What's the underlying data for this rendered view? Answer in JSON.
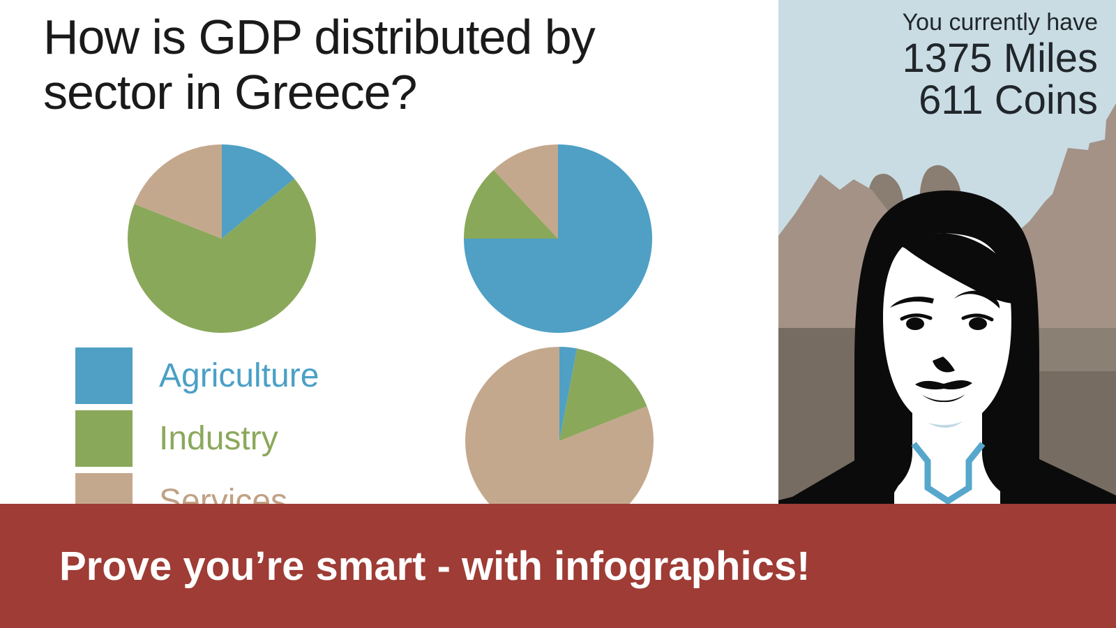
{
  "question": {
    "title_lines": [
      "How is GDP distributed by",
      "sector in Greece?"
    ]
  },
  "legend": {
    "items": [
      {
        "label": "Agriculture",
        "color": "#4FA0C4",
        "label_color": "#4BA0C6"
      },
      {
        "label": "Industry",
        "color": "#8AA85A",
        "label_color": "#8CA85C"
      },
      {
        "label": "Services",
        "color": "#C4A88D",
        "label_color": "#C0A184"
      }
    ]
  },
  "chart_data": [
    {
      "type": "pie",
      "role": "question-example-pie",
      "categories": [
        "Agriculture",
        "Industry",
        "Services"
      ],
      "values": [
        14,
        67,
        19
      ],
      "colors": [
        "#4FA0C4",
        "#8AA85A",
        "#C4A88D"
      ],
      "title": "",
      "legend_position": "below-left",
      "data_labels": false,
      "start_angle_deg": 0,
      "direction": "clockwise"
    },
    {
      "type": "pie",
      "role": "answer-option-a",
      "categories": [
        "Agriculture",
        "Industry",
        "Services"
      ],
      "values": [
        75,
        13,
        12
      ],
      "colors": [
        "#4FA0C4",
        "#8AA85A",
        "#C4A88D"
      ],
      "title": "",
      "legend_position": "none",
      "data_labels": false,
      "start_angle_deg": 0,
      "direction": "clockwise"
    },
    {
      "type": "pie",
      "role": "answer-option-b",
      "categories": [
        "Agriculture",
        "Industry",
        "Services"
      ],
      "values": [
        3,
        16,
        81
      ],
      "colors": [
        "#4FA0C4",
        "#8AA85A",
        "#C4A88D"
      ],
      "title": "",
      "legend_position": "none",
      "data_labels": false,
      "start_angle_deg": 0,
      "direction": "clockwise",
      "note_clipped_by_banner": true
    }
  ],
  "status_panel": {
    "heading": "You currently have",
    "miles": "1375 Miles",
    "coins": "611 Coins",
    "sky_color": "#C9DCE3"
  },
  "banner": {
    "label": "Prove you’re smart - with infographics!",
    "bg_color": "#9E3C35",
    "text_color": "#FFFFFF"
  }
}
